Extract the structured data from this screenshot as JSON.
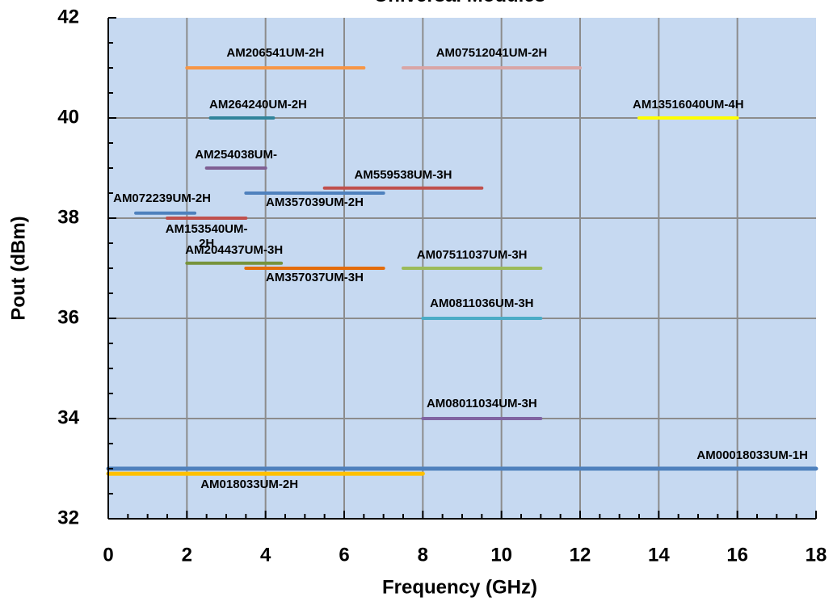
{
  "chart_data": {
    "type": "line",
    "title": "Universal Modules",
    "xlabel": "Frequency (GHz)",
    "ylabel": "Pout (dBm)",
    "xlim": [
      0,
      18
    ],
    "ylim": [
      32,
      42
    ],
    "x_ticks": [
      0,
      2,
      4,
      6,
      8,
      10,
      12,
      14,
      16,
      18
    ],
    "y_ticks": [
      32,
      34,
      36,
      38,
      40,
      42
    ],
    "x_minor_step": 0.5,
    "y_minor_step": 0.5,
    "grid": true,
    "plot_background": "#c6d9f1",
    "legend": "none",
    "series": [
      {
        "name": "AM206541UM-2H",
        "x": [
          2.0,
          6.5
        ],
        "y": [
          41.0,
          41.0
        ],
        "color": "#f79646",
        "label_display": [
          "AM206541UM-2H"
        ]
      },
      {
        "name": "AM07512041UM-2H",
        "x": [
          7.5,
          12.0
        ],
        "y": [
          41.0,
          41.0
        ],
        "color": "#d9a5a6",
        "label_display": [
          "AM07512041UM-2H"
        ]
      },
      {
        "name": "AM264240UM-2H",
        "x": [
          2.6,
          4.2
        ],
        "y": [
          40.0,
          40.0
        ],
        "color": "#31849b",
        "label_display": [
          "AM264240UM-2H"
        ]
      },
      {
        "name": "AM13516040UM-4H",
        "x": [
          13.5,
          16.0
        ],
        "y": [
          40.0,
          40.0
        ],
        "color": "#ffff00",
        "label_display": [
          "AM13516040UM-4H"
        ]
      },
      {
        "name": "AM254038UM-",
        "x": [
          2.5,
          4.0
        ],
        "y": [
          39.0,
          39.0
        ],
        "color": "#7f5f93",
        "label_display": [
          "AM254038UM-"
        ]
      },
      {
        "name": "AM559538UM-3H",
        "x": [
          5.5,
          9.5
        ],
        "y": [
          38.6,
          38.6
        ],
        "color": "#c0504d",
        "label_display": [
          "AM559538UM-3H"
        ]
      },
      {
        "name": "AM357039UM-2H",
        "x": [
          3.5,
          7.0
        ],
        "y": [
          38.5,
          38.5
        ],
        "color": "#4f81bd",
        "label_display": [
          "AM357039UM-2H"
        ]
      },
      {
        "name": "AM072239UM-2H",
        "x": [
          0.7,
          2.2
        ],
        "y": [
          38.1,
          38.1
        ],
        "color": "#4f81bd",
        "label_display": [
          "AM072239UM-2H"
        ]
      },
      {
        "name": "AM153540UM-2H",
        "x": [
          1.5,
          3.5
        ],
        "y": [
          38.0,
          38.0
        ],
        "color": "#c0504d",
        "label_display": [
          "AM153540UM-",
          "2H"
        ]
      },
      {
        "name": "AM204437UM-3H",
        "x": [
          2.0,
          4.4
        ],
        "y": [
          37.1,
          37.1
        ],
        "color": "#77933c",
        "label_display": [
          "AM204437UM-3H"
        ]
      },
      {
        "name": "AM357037UM-3H",
        "x": [
          3.5,
          7.0
        ],
        "y": [
          37.0,
          37.0
        ],
        "color": "#e46c0a",
        "label_display": [
          "AM357037UM-3H"
        ]
      },
      {
        "name": "AM07511037UM-3H",
        "x": [
          7.5,
          11.0
        ],
        "y": [
          37.0,
          37.0
        ],
        "color": "#9bbb59",
        "label_display": [
          "AM07511037UM-3H"
        ]
      },
      {
        "name": "AM0811036UM-3H",
        "x": [
          8.0,
          11.0
        ],
        "y": [
          36.0,
          36.0
        ],
        "color": "#4bacc6",
        "label_display": [
          "AM0811036UM-3H"
        ]
      },
      {
        "name": "AM08011034UM-3H",
        "x": [
          8.0,
          11.0
        ],
        "y": [
          34.0,
          34.0
        ],
        "color": "#8064a2",
        "label_display": [
          "AM08011034UM-3H"
        ]
      },
      {
        "name": "AM00018033UM-1H",
        "x": [
          0.0,
          18.0
        ],
        "y": [
          33.0,
          33.0
        ],
        "color": "#4f81bd",
        "label_display": [
          "AM00018033UM-1H"
        ]
      },
      {
        "name": "AM018033UM-2H",
        "x": [
          0.0,
          8.0
        ],
        "y": [
          32.9,
          32.9
        ],
        "color": "#ffc000",
        "label_display": [
          "AM018033UM-2H"
        ]
      }
    ]
  }
}
